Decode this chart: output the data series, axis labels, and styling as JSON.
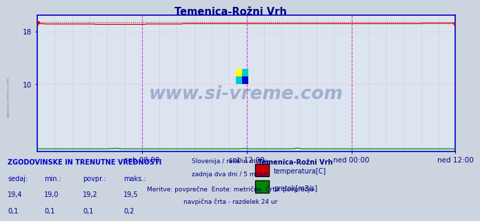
{
  "title": "Temenica-Rožni Vrh",
  "title_color": "#000080",
  "bg_color": "#ccd4e0",
  "plot_bg_color": "#dce4f0",
  "axis_color": "#0000cc",
  "temp_color": "#cc0000",
  "flow_color": "#008800",
  "vertical_line_color": "#cc44cc",
  "grid_h_color": "#ffaaaa",
  "grid_v_color": "#c8c8c8",
  "watermark_color": "#1a3a8a",
  "watermark_text": "www.si-vreme.com",
  "xlabel_ticks": [
    "sob 00:00",
    "sob 12:00",
    "ned 00:00",
    "ned 12:00"
  ],
  "ylim": [
    -0.3,
    20.5
  ],
  "n_points": 576,
  "temp_base": 19.2,
  "flow_base": 0.1,
  "subtitle_lines": [
    "Slovenija / reke in morje.",
    "zadnja dva dni / 5 minut.",
    "Meritve: povprečne  Enote: metrične  Črta: povprečje",
    "navpična črta - razdelek 24 ur"
  ],
  "subtitle_color": "#000080",
  "table_header": "ZGODOVINSKE IN TRENUTNE VREDNOSTI",
  "table_header_color": "#0000cc",
  "table_col_headers": [
    "sedaj:",
    "min.:",
    "povpr.:",
    "maks.:"
  ],
  "table_col_color": "#0000aa",
  "table_row1": [
    "19,4",
    "19,0",
    "19,2",
    "19,5"
  ],
  "table_row2": [
    "0,1",
    "0,1",
    "0,1",
    "0,2"
  ],
  "table_data_color": "#000080",
  "legend_title": "Temenica-Rožni Vrh",
  "legend_title_color": "#000080",
  "legend_items": [
    "temperatura[C]",
    "pretok[m3/s]"
  ],
  "legend_colors": [
    "#cc0000",
    "#008800"
  ]
}
